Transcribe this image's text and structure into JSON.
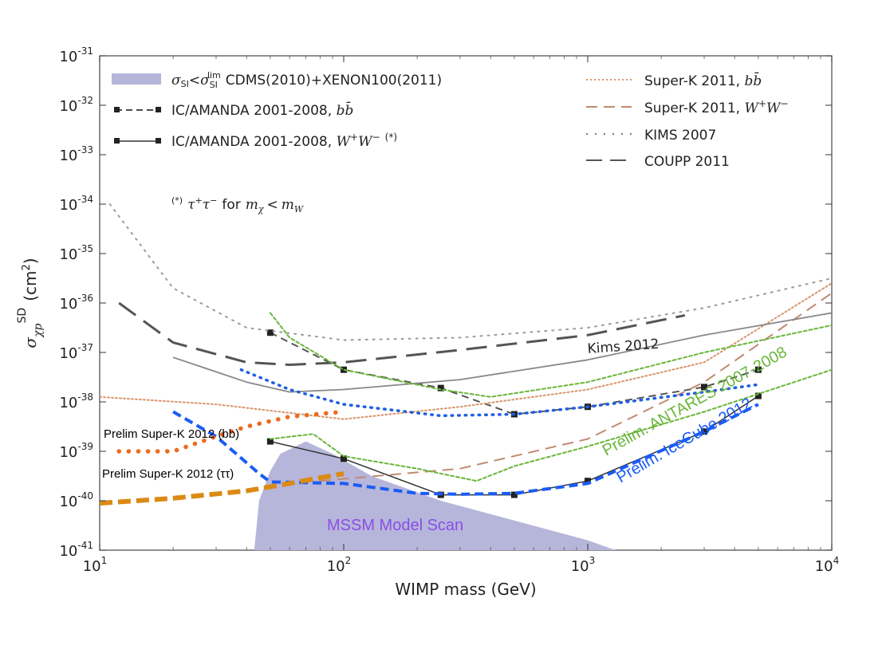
{
  "chart_data": {
    "type": "line",
    "title": "",
    "xlabel": "WIMP mass (GeV)",
    "ylabel": "σ_χp^SD (cm^2)",
    "xscale": "log",
    "yscale": "log",
    "xlim": [
      10,
      10000
    ],
    "ylim": [
      1e-41,
      1e-31
    ],
    "xticks": [
      {
        "exp": 1,
        "base": "10",
        "sup": "1"
      },
      {
        "exp": 2,
        "base": "10",
        "sup": "2"
      },
      {
        "exp": 3,
        "base": "10",
        "sup": "3"
      },
      {
        "exp": 4,
        "base": "10",
        "sup": "4"
      }
    ],
    "yticks": [
      {
        "exp": -31,
        "base": "10",
        "sup": "-31"
      },
      {
        "exp": -32,
        "base": "10",
        "sup": "-32"
      },
      {
        "exp": -33,
        "base": "10",
        "sup": "-33"
      },
      {
        "exp": -34,
        "base": "10",
        "sup": "-34"
      },
      {
        "exp": -35,
        "base": "10",
        "sup": "-35"
      },
      {
        "exp": -36,
        "base": "10",
        "sup": "-36"
      },
      {
        "exp": -37,
        "base": "10",
        "sup": "-37"
      },
      {
        "exp": -38,
        "base": "10",
        "sup": "-38"
      },
      {
        "exp": -39,
        "base": "10",
        "sup": "-39"
      },
      {
        "exp": -40,
        "base": "10",
        "sup": "-40"
      },
      {
        "exp": -41,
        "base": "10",
        "sup": "-41"
      }
    ],
    "region": {
      "name": "MSSM Model Scan",
      "color": "#b6b6db",
      "points": [
        [
          43,
          -41
        ],
        [
          45,
          -40
        ],
        [
          50,
          -39.4
        ],
        [
          55,
          -39.05
        ],
        [
          70,
          -38.8
        ],
        [
          90,
          -39.05
        ],
        [
          130,
          -39.5
        ],
        [
          250,
          -40
        ],
        [
          500,
          -40.4
        ],
        [
          1000,
          -40.8
        ],
        [
          1300,
          -41
        ]
      ]
    },
    "series": [
      {
        "name": "IC/AMANDA 2001-2008, bb̄",
        "style": "dashed",
        "color": "#555555",
        "width": 2,
        "dash": "9,6",
        "markers": true,
        "points": [
          [
            50,
            -36.6
          ],
          [
            100,
            -37.35
          ],
          [
            250,
            -37.72
          ],
          [
            500,
            -38.25
          ],
          [
            1000,
            -38.1
          ],
          [
            3000,
            -37.7
          ],
          [
            5000,
            -37.35
          ]
        ]
      },
      {
        "name": "IC/AMANDA 2001-2008, W+W- (*)",
        "style": "solid",
        "color": "#333333",
        "width": 1.5,
        "markers": true,
        "points": [
          [
            50,
            -38.8
          ],
          [
            100,
            -39.15
          ],
          [
            250,
            -39.88
          ],
          [
            500,
            -39.88
          ],
          [
            1000,
            -39.6
          ],
          [
            3000,
            -38.6
          ],
          [
            5000,
            -37.88
          ]
        ]
      },
      {
        "name": "Super-K 2011, bb̄",
        "style": "dotted",
        "color": "#d9946c",
        "width": 2,
        "dash": "2,3",
        "points": [
          [
            10,
            -37.9
          ],
          [
            30,
            -38.05
          ],
          [
            100,
            -38.35
          ],
          [
            300,
            -38.1
          ],
          [
            1000,
            -37.75
          ],
          [
            3000,
            -37.2
          ],
          [
            10000,
            -35.6
          ]
        ]
      },
      {
        "name": "Super-K 2011, W+W-",
        "style": "dashed",
        "color": "#c28a72",
        "width": 2,
        "dash": "14,8",
        "points": [
          [
            80,
            -39.6
          ],
          [
            300,
            -39.35
          ],
          [
            1000,
            -38.75
          ],
          [
            3000,
            -37.6
          ],
          [
            10000,
            -35.8
          ]
        ]
      },
      {
        "name": "KIMS 2007",
        "style": "dotted",
        "color": "#999999",
        "width": 2,
        "dash": "2,7",
        "points": [
          [
            11,
            -34
          ],
          [
            20,
            -35.7
          ],
          [
            40,
            -36.5
          ],
          [
            100,
            -36.75
          ],
          [
            300,
            -36.7
          ],
          [
            1000,
            -36.5
          ],
          [
            3000,
            -36.1
          ],
          [
            10000,
            -35.5
          ]
        ]
      },
      {
        "name": "COUPP 2011",
        "style": "dashed",
        "color": "#555555",
        "width": 3,
        "dash": "26,12",
        "points": [
          [
            12,
            -36
          ],
          [
            20,
            -36.8
          ],
          [
            40,
            -37.2
          ],
          [
            60,
            -37.25
          ],
          [
            100,
            -37.2
          ],
          [
            300,
            -36.95
          ],
          [
            1000,
            -36.65
          ],
          [
            2500,
            -36.25
          ]
        ]
      },
      {
        "name": "Kims 2012",
        "style": "solid",
        "color": "#888888",
        "width": 1.8,
        "points": [
          [
            20,
            -37.1
          ],
          [
            40,
            -37.6
          ],
          [
            60,
            -37.8
          ],
          [
            100,
            -37.75
          ],
          [
            300,
            -37.55
          ],
          [
            1000,
            -37.15
          ],
          [
            3000,
            -36.65
          ],
          [
            10000,
            -36.2
          ]
        ]
      },
      {
        "name": "Prelim. ANTARES 2007-2008 (a)",
        "style": "dotted",
        "color": "#6ab63a",
        "width": 2,
        "dash": "4,3",
        "points": [
          [
            50,
            -36.2
          ],
          [
            60,
            -36.7
          ],
          [
            100,
            -37.35
          ],
          [
            250,
            -37.75
          ],
          [
            400,
            -37.9
          ],
          [
            1000,
            -37.6
          ],
          [
            3000,
            -37
          ],
          [
            10000,
            -36.45
          ]
        ]
      },
      {
        "name": "Prelim. ANTARES 2007-2008 (b)",
        "style": "dotted",
        "color": "#6ab63a",
        "width": 2,
        "dash": "4,3",
        "points": [
          [
            50,
            -38.75
          ],
          [
            75,
            -38.65
          ],
          [
            100,
            -39.1
          ],
          [
            200,
            -39.35
          ],
          [
            350,
            -39.6
          ],
          [
            500,
            -39.3
          ],
          [
            1000,
            -38.9
          ],
          [
            3000,
            -38.2
          ],
          [
            10000,
            -37.35
          ]
        ]
      },
      {
        "name": "Prelim. IceCube 2012 (bb)",
        "style": "dotted",
        "color": "#1f5fe0",
        "width": 3.5,
        "dash": "1.5,7",
        "points": [
          [
            38,
            -37.35
          ],
          [
            60,
            -37.75
          ],
          [
            100,
            -38.05
          ],
          [
            250,
            -38.28
          ],
          [
            500,
            -38.25
          ],
          [
            1000,
            -38.1
          ],
          [
            3000,
            -37.8
          ],
          [
            5000,
            -37.65
          ]
        ]
      },
      {
        "name": "Prelim. IceCube 2012 (WW)",
        "style": "dashed",
        "color": "#1a5cf5",
        "width": 4,
        "dash": "11,6",
        "points": [
          [
            20,
            -38.2
          ],
          [
            30,
            -38.7
          ],
          [
            45,
            -39.45
          ],
          [
            50,
            -39.62
          ],
          [
            100,
            -39.65
          ],
          [
            200,
            -39.85
          ],
          [
            300,
            -39.87
          ],
          [
            500,
            -39.85
          ],
          [
            1000,
            -39.65
          ],
          [
            3000,
            -38.6
          ],
          [
            5000,
            -38.05
          ]
        ]
      },
      {
        "name": "Prelim Super-K 2012 (bb)",
        "style": "dotted",
        "color": "#ec6a1e",
        "width": 5.5,
        "dash": "0.1,12",
        "points": [
          [
            12,
            -39
          ],
          [
            20,
            -39
          ],
          [
            30,
            -38.7
          ],
          [
            40,
            -38.5
          ],
          [
            60,
            -38.3
          ],
          [
            100,
            -38.2
          ]
        ]
      },
      {
        "name": "Prelim Super-K 2012 (ττ)",
        "style": "dashed",
        "color": "#db8a14",
        "width": 6,
        "dash": "16,7",
        "points": [
          [
            10,
            -40.05
          ],
          [
            20,
            -39.95
          ],
          [
            40,
            -39.8
          ],
          [
            60,
            -39.65
          ],
          [
            100,
            -39.45
          ]
        ]
      }
    ],
    "legend_left": {
      "placement": "top-left",
      "entries": [
        {
          "kind": "band",
          "color": "#b6b6db",
          "label": "σSI<σSIlim CDMS(2010)+XENON100(2011)"
        },
        {
          "kind": "line",
          "style": "dashed",
          "color": "#333333",
          "label": "IC/AMANDA 2001-2008, bb̄"
        },
        {
          "kind": "line",
          "style": "solid",
          "color": "#333333",
          "label": "IC/AMANDA 2001-2008, W+W− (*)"
        }
      ]
    },
    "legend_right": {
      "placement": "top-right",
      "entries": [
        {
          "kind": "line",
          "style": "dotted",
          "color": "#d9946c",
          "label": "Super-K 2011, bb̄"
        },
        {
          "kind": "line",
          "style": "dashed",
          "color": "#c28a72",
          "label": "Super-K 2011, W+W−"
        },
        {
          "kind": "line",
          "style": "dotted",
          "color": "#777777",
          "label": "KIMS 2007"
        },
        {
          "kind": "line",
          "style": "dashed",
          "color": "#555555",
          "label": "COUPP 2011"
        }
      ]
    },
    "footnote": "(*) τ+τ− for mχ < mW",
    "annotations": [
      {
        "text": "Kims 2012",
        "color": "#444444"
      },
      {
        "text": "Prelim. ANTARES 2007-2008",
        "color": "#6ab63a"
      },
      {
        "text": "Prelim. IceCube 2012",
        "color": "#1a5cf5"
      },
      {
        "text": "Prelim Super-K 2012 (bb)",
        "color": "#000000"
      },
      {
        "text": "Prelim Super-K 2012 (ττ)",
        "color": "#000000"
      },
      {
        "text": "MSSM Model Scan",
        "color": "#8a4ee6"
      }
    ]
  }
}
